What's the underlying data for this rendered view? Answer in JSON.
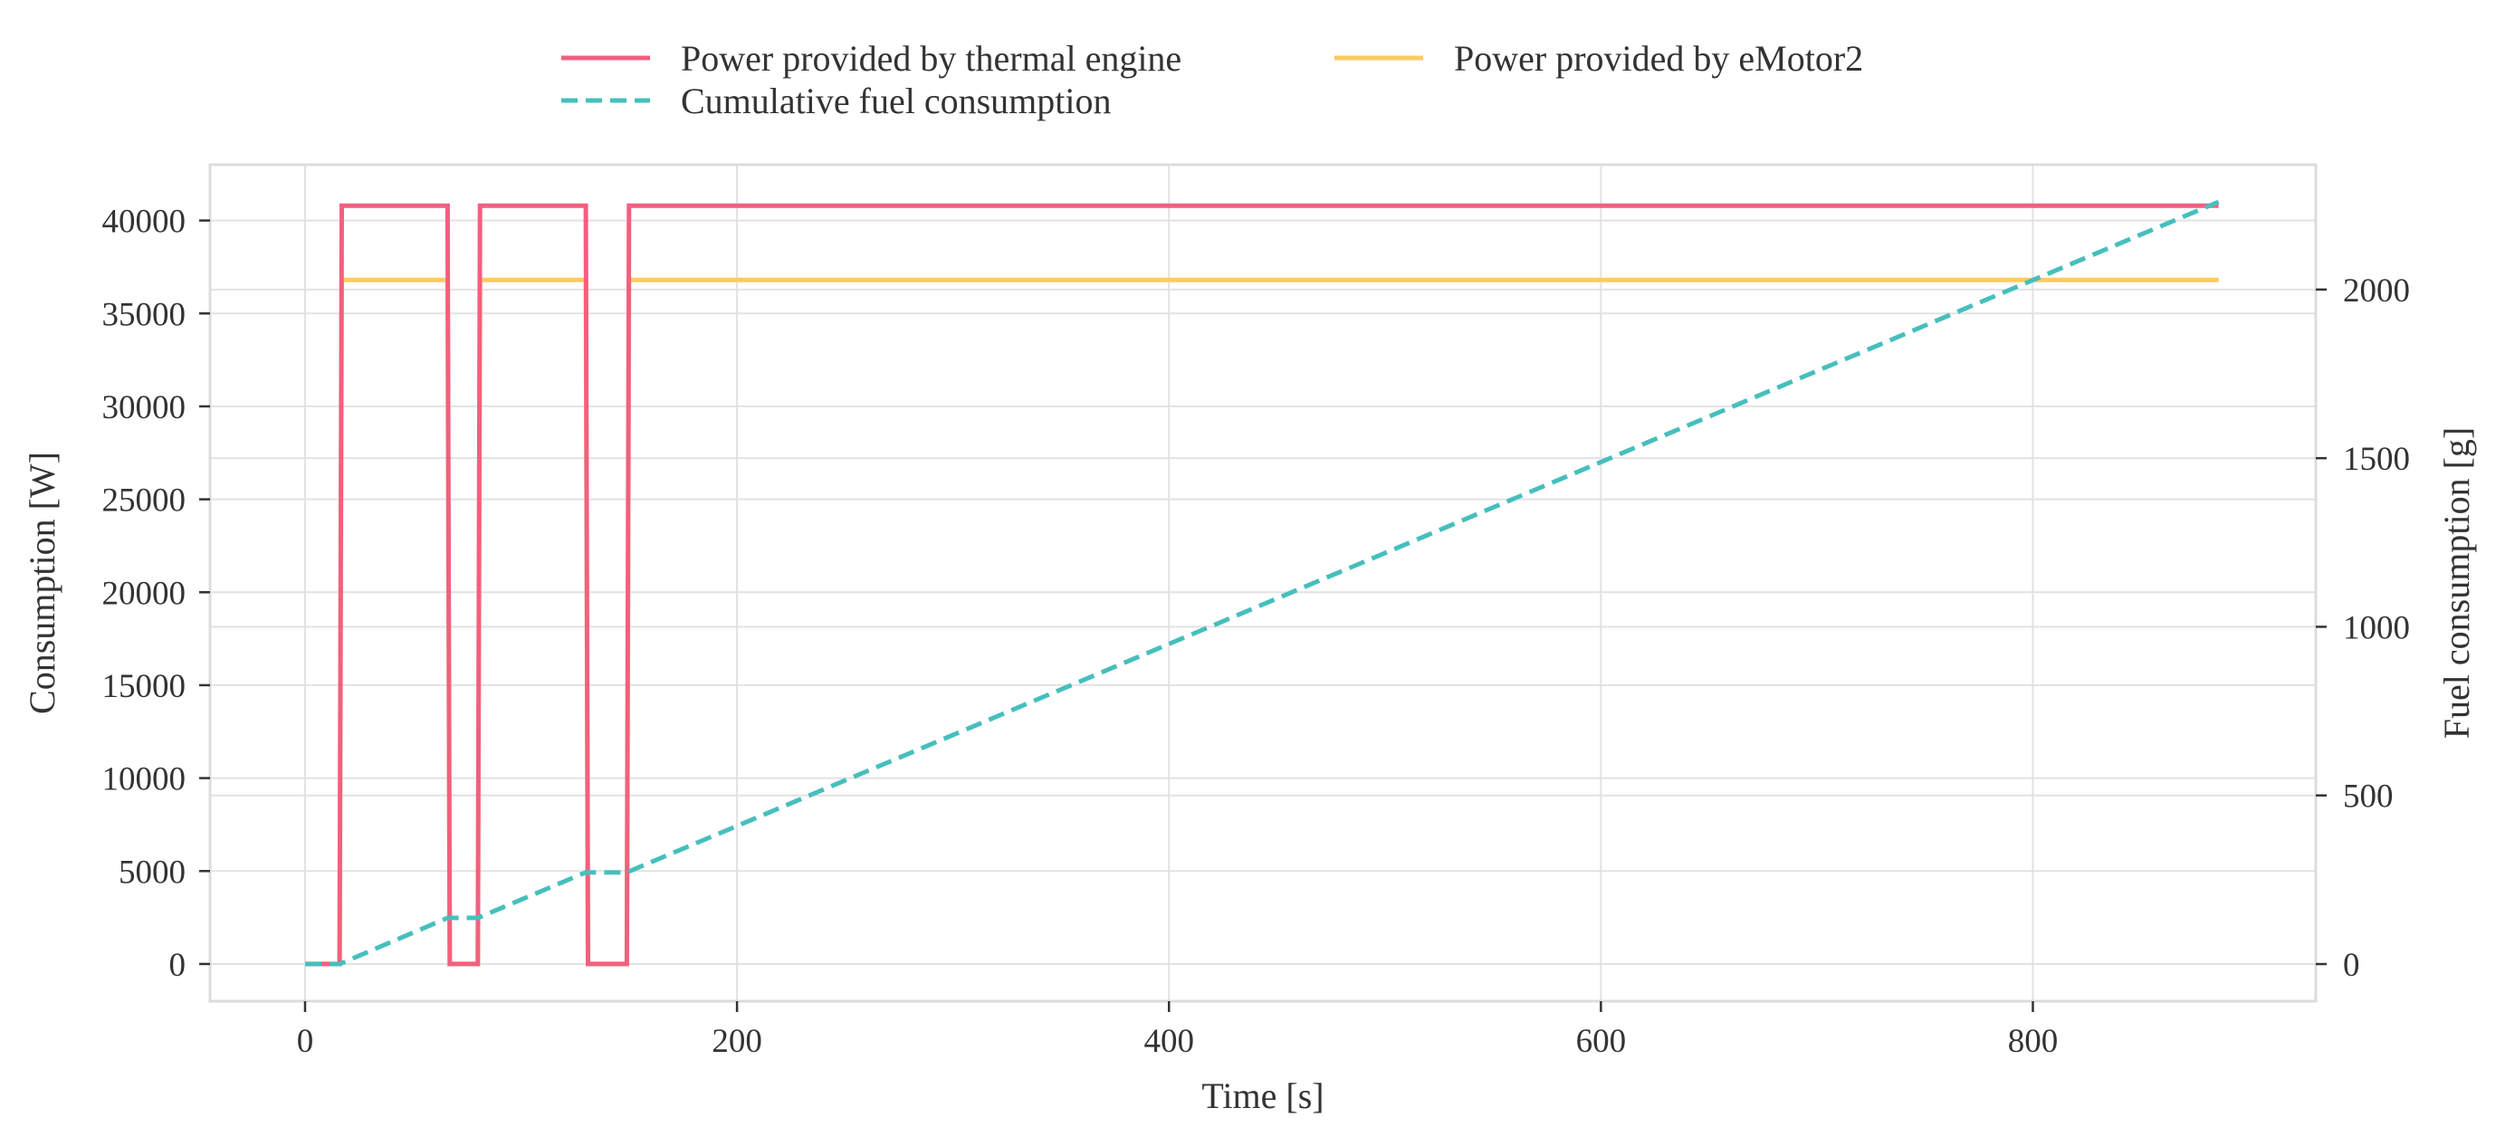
{
  "chart_data": {
    "type": "line",
    "title": "",
    "xlabel": "Time [s]",
    "ylabel_left": "Consumption [W]",
    "ylabel_right": "Fuel consumption [g]",
    "xlim": [
      -44,
      931
    ],
    "ylim_left": [
      -2000,
      43000
    ],
    "ylim_right": [
      -110,
      2370
    ],
    "x_ticks": [
      0,
      200,
      400,
      600,
      800
    ],
    "y_left_ticks": [
      0,
      5000,
      10000,
      15000,
      20000,
      25000,
      30000,
      35000,
      40000
    ],
    "y_right_ticks": [
      0,
      500,
      1000,
      1500,
      2000
    ],
    "grid": true,
    "legend_position": "top-center",
    "series": [
      {
        "name": "Power provided by thermal engine",
        "axis": "left",
        "style": "solid",
        "color": "#f2607f",
        "x": [
          0,
          16,
          17,
          66,
          67,
          80,
          81,
          130,
          131,
          149,
          150,
          886
        ],
        "y": [
          0,
          0,
          40800,
          40800,
          0,
          0,
          40800,
          40800,
          0,
          0,
          40800,
          40800
        ]
      },
      {
        "name": "Power provided by eMotor2",
        "axis": "left",
        "style": "solid",
        "color": "#fdca62",
        "x": [
          0,
          16,
          17,
          66,
          67,
          80,
          81,
          130,
          131,
          149,
          150,
          886
        ],
        "y": [
          0,
          0,
          36800,
          36800,
          0,
          0,
          36800,
          36800,
          0,
          0,
          36800,
          36800
        ]
      },
      {
        "name": "Cumulative fuel consumption",
        "axis": "right",
        "style": "dashed",
        "color": "#46bfbd",
        "x": [
          0,
          16,
          66,
          80,
          130,
          149,
          886
        ],
        "y": [
          0,
          0,
          137,
          137,
          272,
          272,
          2260
        ]
      }
    ]
  }
}
